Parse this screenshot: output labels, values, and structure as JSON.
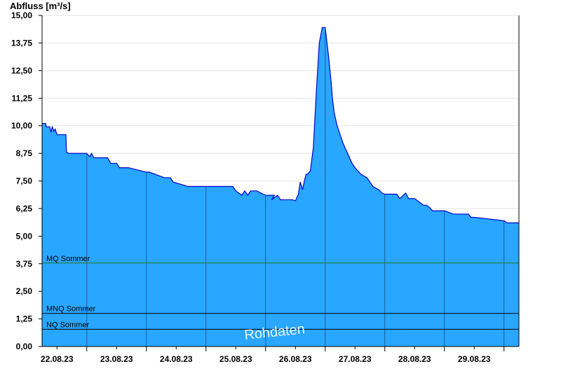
{
  "chart_data": {
    "type": "area",
    "ylabel": "Abfluss [m³/s]",
    "xlabel": "",
    "ylim": [
      0,
      15
    ],
    "xlim": [
      -0.25,
      7.75
    ],
    "yticks": [
      "0,00",
      "1,25",
      "2,50",
      "3,75",
      "5,00",
      "6,25",
      "7,50",
      "8,75",
      "10,00",
      "11,25",
      "12,50",
      "13,75",
      "15,00"
    ],
    "xticks": [
      "22.08.23",
      "23.08.23",
      "24.08.23",
      "25.08.23",
      "26.08.23",
      "27.08.23",
      "28.08.23",
      "29.08.23"
    ],
    "grid": true,
    "fill_color": "#29a6ff",
    "line_color": "#0000cc",
    "watermark": "Rohdaten",
    "series": [
      {
        "x": [
          -0.25,
          -0.19,
          -0.18,
          -0.12,
          -0.1,
          -0.08,
          -0.05,
          -0.03,
          0.0,
          0.02,
          0.05,
          0.15,
          0.16,
          0.2,
          0.22,
          0.25,
          0.5,
          0.55,
          0.58,
          0.62,
          0.65,
          0.85,
          0.9,
          1.0,
          1.05,
          1.2,
          1.5,
          1.55,
          1.8,
          1.9,
          1.95,
          2.2,
          2.3,
          2.5,
          2.7,
          2.95,
          3.0,
          3.1,
          3.15,
          3.2,
          3.25,
          3.3,
          3.35,
          3.5,
          3.65,
          3.6,
          3.7,
          3.75,
          3.8,
          3.85,
          3.9,
          3.95,
          4.0,
          4.05,
          4.08,
          4.1,
          4.12,
          4.15,
          4.18,
          4.2,
          4.25,
          4.3,
          4.35,
          4.4,
          4.45,
          4.5,
          4.55,
          4.6,
          4.62,
          4.65,
          4.7,
          4.75,
          4.8,
          4.85,
          4.9,
          4.95,
          5.0,
          5.05,
          5.1,
          5.2,
          5.25,
          5.3,
          5.4,
          5.45,
          5.5,
          5.6,
          5.7,
          5.75,
          5.85,
          5.9,
          6.0,
          6.1,
          6.15,
          6.2,
          6.25,
          6.3,
          6.5,
          6.65,
          6.9,
          6.95,
          7.0,
          7.5,
          7.55,
          7.75
        ],
        "y": [
          10.1,
          10.1,
          9.95,
          9.95,
          9.7,
          9.95,
          9.75,
          9.85,
          9.6,
          9.6,
          9.6,
          9.6,
          8.8,
          8.75,
          8.75,
          8.75,
          8.75,
          8.6,
          8.75,
          8.55,
          8.55,
          8.55,
          8.3,
          8.3,
          8.1,
          8.1,
          7.9,
          7.9,
          7.65,
          7.65,
          7.45,
          7.25,
          7.25,
          7.25,
          7.25,
          7.25,
          7.05,
          6.85,
          7.05,
          6.85,
          7.05,
          7.05,
          7.05,
          6.85,
          6.85,
          6.65,
          6.85,
          6.65,
          6.65,
          6.65,
          6.65,
          6.65,
          6.6,
          6.9,
          7.45,
          7.3,
          7.1,
          7.5,
          7.8,
          7.8,
          7.95,
          9.0,
          11.5,
          13.75,
          14.45,
          14.45,
          13.3,
          12.0,
          11.3,
          10.6,
          10.0,
          9.6,
          9.2,
          8.9,
          8.6,
          8.3,
          8.1,
          7.95,
          7.8,
          7.65,
          7.45,
          7.25,
          7.1,
          6.95,
          6.9,
          6.9,
          6.9,
          6.7,
          6.95,
          6.7,
          6.7,
          6.5,
          6.4,
          6.4,
          6.3,
          6.15,
          6.15,
          6.0,
          6.0,
          5.85,
          5.85,
          5.7,
          5.6,
          5.6
        ]
      }
    ],
    "reference_lines": [
      {
        "label": "MQ Sommer",
        "value": 3.78,
        "color": "#1f7a1f"
      },
      {
        "label": "MNQ Sommer",
        "value": 1.5,
        "color": "#000000"
      },
      {
        "label": "NQ Sommer",
        "value": 0.78,
        "color": "#000000"
      }
    ]
  }
}
